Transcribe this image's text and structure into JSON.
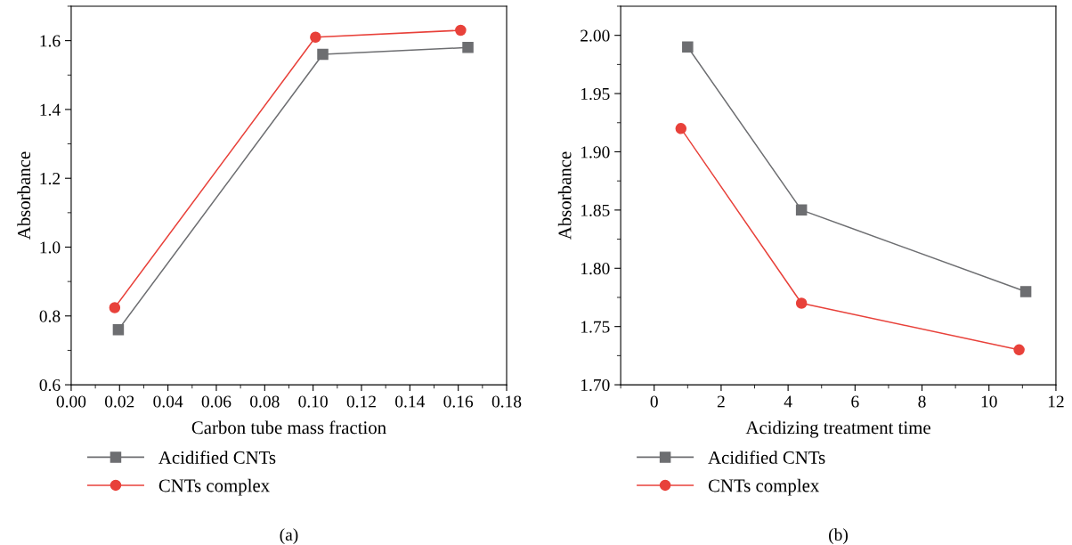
{
  "chart_data": [
    {
      "type": "line",
      "xlabel": "Carbon tube mass fraction",
      "ylabel": "Absorbance",
      "annotations": [
        "(a)"
      ],
      "legend": "bottom left",
      "xlim": [
        0,
        0.18
      ],
      "ylim": [
        0.6,
        1.7
      ],
      "xticks": [
        {
          "value": 0,
          "label": "0.00"
        },
        {
          "value": 0.02,
          "label": "0.02"
        },
        {
          "value": 0.04,
          "label": "0.04"
        },
        {
          "value": 0.06,
          "label": "0.06"
        },
        {
          "value": 0.08,
          "label": "0.08"
        },
        {
          "value": 0.1,
          "label": "0.10"
        },
        {
          "value": 0.12,
          "label": "0.12"
        },
        {
          "value": 0.14,
          "label": "0.14"
        },
        {
          "value": 0.16,
          "label": "0.16"
        },
        {
          "value": 0.18,
          "label": "0.18"
        }
      ],
      "yticks": [
        0.6,
        0.8,
        {
          "value": 1,
          "label": "1.0"
        },
        1.2,
        1.4,
        1.6
      ],
      "series": [
        {
          "name": "Acidified CNTs",
          "color": "#6d6e71",
          "marker": "square",
          "x": [
            0.0195,
            0.104,
            0.164
          ],
          "values": [
            0.76,
            1.56,
            1.58
          ]
        },
        {
          "name": "CNTs complex",
          "color": "#e8413a",
          "marker": "circle",
          "x": [
            0.018,
            0.101,
            0.161
          ],
          "values": [
            0.824,
            1.61,
            1.63
          ]
        }
      ]
    },
    {
      "type": "line",
      "xlabel": "Acidizing treatment time",
      "ylabel": "Absorbance",
      "annotations": [
        "(b)"
      ],
      "legend": "bottom left",
      "xlim": [
        -1,
        12
      ],
      "ylim": [
        1.7,
        2.025
      ],
      "xticks": [
        0,
        2,
        4,
        6,
        8,
        10,
        12
      ],
      "yticks": [
        {
          "value": 1.7,
          "label": "1.70"
        },
        {
          "value": 1.75,
          "label": "1.75"
        },
        {
          "value": 1.8,
          "label": "1.80"
        },
        {
          "value": 1.85,
          "label": "1.85"
        },
        {
          "value": 1.9,
          "label": "1.90"
        },
        {
          "value": 1.95,
          "label": "1.95"
        },
        {
          "value": 2.0,
          "label": "2.00"
        }
      ],
      "series": [
        {
          "name": "Acidified CNTs",
          "color": "#6d6e71",
          "marker": "square",
          "x": [
            1.0,
            4.4,
            11.1
          ],
          "values": [
            1.99,
            1.85,
            1.78
          ]
        },
        {
          "name": "CNTs complex",
          "color": "#e8413a",
          "marker": "circle",
          "x": [
            0.8,
            4.4,
            10.9
          ],
          "values": [
            1.92,
            1.77,
            1.73
          ]
        }
      ]
    }
  ]
}
